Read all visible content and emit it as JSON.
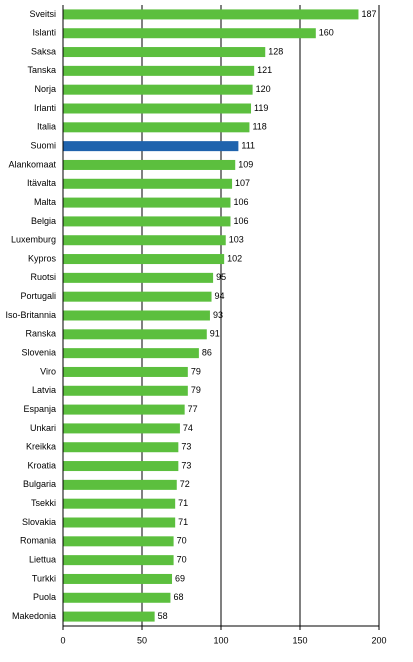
{
  "chart_data": {
    "type": "hbar",
    "categories": [
      "Sveitsi",
      "Islanti",
      "Saksa",
      "Tanska",
      "Norja",
      "Irlanti",
      "Italia",
      "Suomi",
      "Alankomaat",
      "Itävalta",
      "Malta",
      "Belgia",
      "Luxemburg",
      "Kypros",
      "Ruotsi",
      "Portugali",
      "Iso-Britannia",
      "Ranska",
      "Slovenia",
      "Viro",
      "Latvia",
      "Espanja",
      "Unkari",
      "Kreikka",
      "Kroatia",
      "Bulgaria",
      "Tsekki",
      "Slovakia",
      "Romania",
      "Liettua",
      "Turkki",
      "Puola",
      "Makedonia"
    ],
    "values": [
      187,
      160,
      128,
      121,
      120,
      119,
      118,
      111,
      109,
      107,
      106,
      106,
      103,
      102,
      95,
      94,
      93,
      91,
      86,
      79,
      79,
      77,
      74,
      73,
      73,
      72,
      71,
      71,
      70,
      70,
      69,
      68,
      58
    ],
    "colors": [
      "#5cbf3e",
      "#5cbf3e",
      "#5cbf3e",
      "#5cbf3e",
      "#5cbf3e",
      "#5cbf3e",
      "#5cbf3e",
      "#1f63ad",
      "#5cbf3e",
      "#5cbf3e",
      "#5cbf3e",
      "#5cbf3e",
      "#5cbf3e",
      "#5cbf3e",
      "#5cbf3e",
      "#5cbf3e",
      "#5cbf3e",
      "#5cbf3e",
      "#5cbf3e",
      "#5cbf3e",
      "#5cbf3e",
      "#5cbf3e",
      "#5cbf3e",
      "#5cbf3e",
      "#5cbf3e",
      "#5cbf3e",
      "#5cbf3e",
      "#5cbf3e",
      "#5cbf3e",
      "#5cbf3e",
      "#5cbf3e",
      "#5cbf3e",
      "#5cbf3e"
    ],
    "xlim": [
      0,
      200
    ],
    "xticks": [
      0,
      50,
      100,
      150,
      200
    ],
    "grid": true
  }
}
